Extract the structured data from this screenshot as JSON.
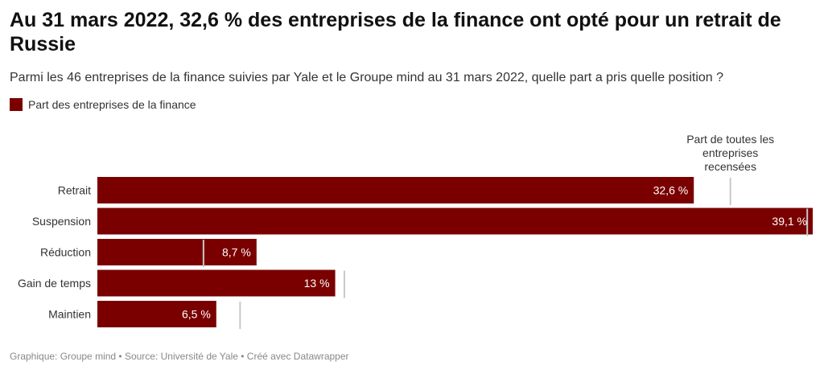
{
  "title": "Au 31 mars 2022, 32,6 % des entreprises de la finance ont opté pour un retrait de Russie",
  "subtitle": "Parmi les 46 entreprises de la finance suivies par Yale et le Groupe mind au 31 mars 2022, quelle part a pris quelle position ?",
  "legend": {
    "label": "Part des entreprises de la finance",
    "color": "#7a0000"
  },
  "marker_annotation": [
    "Part de toutes les",
    "entreprises",
    "recensées"
  ],
  "footer": "Graphique: Groupe mind • Source: Université de Yale • Créé avec Datawrapper",
  "colors": {
    "bar": "#7a0000",
    "marker": "#c8c8c8",
    "bar_label": "#ffffff",
    "outside_label": "#333333"
  },
  "chart_data": {
    "type": "bar",
    "orientation": "horizontal",
    "categories": [
      "Retrait",
      "Suspension",
      "Réduction",
      "Gain de temps",
      "Maintien"
    ],
    "series": [
      {
        "name": "Part des entreprises de la finance",
        "values": [
          32.6,
          39.1,
          8.7,
          13,
          6.5
        ],
        "labels": [
          "32,6 %",
          "39,1 %",
          "8,7 %",
          "13 %",
          "6,5 %"
        ]
      }
    ],
    "reference_markers": {
      "name": "Part de toutes les entreprises recensées",
      "values": [
        34.6,
        38.8,
        5.8,
        13.5,
        7.8
      ]
    },
    "xlim": [
      0,
      39.1
    ],
    "title": "Au 31 mars 2022, 32,6 % des entreprises de la finance ont opté pour un retrait de Russie"
  }
}
